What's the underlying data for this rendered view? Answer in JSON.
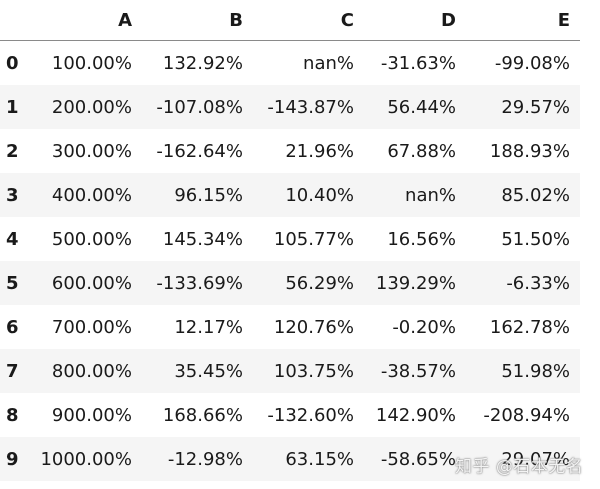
{
  "table": {
    "columns": [
      "A",
      "B",
      "C",
      "D",
      "E"
    ],
    "rows": [
      {
        "index": "0",
        "values": [
          "100.00%",
          "132.92%",
          "nan%",
          "-31.63%",
          "-99.08%"
        ]
      },
      {
        "index": "1",
        "values": [
          "200.00%",
          "-107.08%",
          "-143.87%",
          "56.44%",
          "29.57%"
        ]
      },
      {
        "index": "2",
        "values": [
          "300.00%",
          "-162.64%",
          "21.96%",
          "67.88%",
          "188.93%"
        ]
      },
      {
        "index": "3",
        "values": [
          "400.00%",
          "96.15%",
          "10.40%",
          "nan%",
          "85.02%"
        ]
      },
      {
        "index": "4",
        "values": [
          "500.00%",
          "145.34%",
          "105.77%",
          "16.56%",
          "51.50%"
        ]
      },
      {
        "index": "5",
        "values": [
          "600.00%",
          "-133.69%",
          "56.29%",
          "139.29%",
          "-6.33%"
        ]
      },
      {
        "index": "6",
        "values": [
          "700.00%",
          "12.17%",
          "120.76%",
          "-0.20%",
          "162.78%"
        ]
      },
      {
        "index": "7",
        "values": [
          "800.00%",
          "35.45%",
          "103.75%",
          "-38.57%",
          "51.98%"
        ]
      },
      {
        "index": "8",
        "values": [
          "900.00%",
          "168.66%",
          "-132.60%",
          "142.90%",
          "-208.94%"
        ]
      },
      {
        "index": "9",
        "values": [
          "1000.00%",
          "-12.98%",
          "63.15%",
          "-58.65%",
          "29.07%"
        ]
      }
    ]
  },
  "watermark": {
    "text": "知乎 @石本无名"
  }
}
